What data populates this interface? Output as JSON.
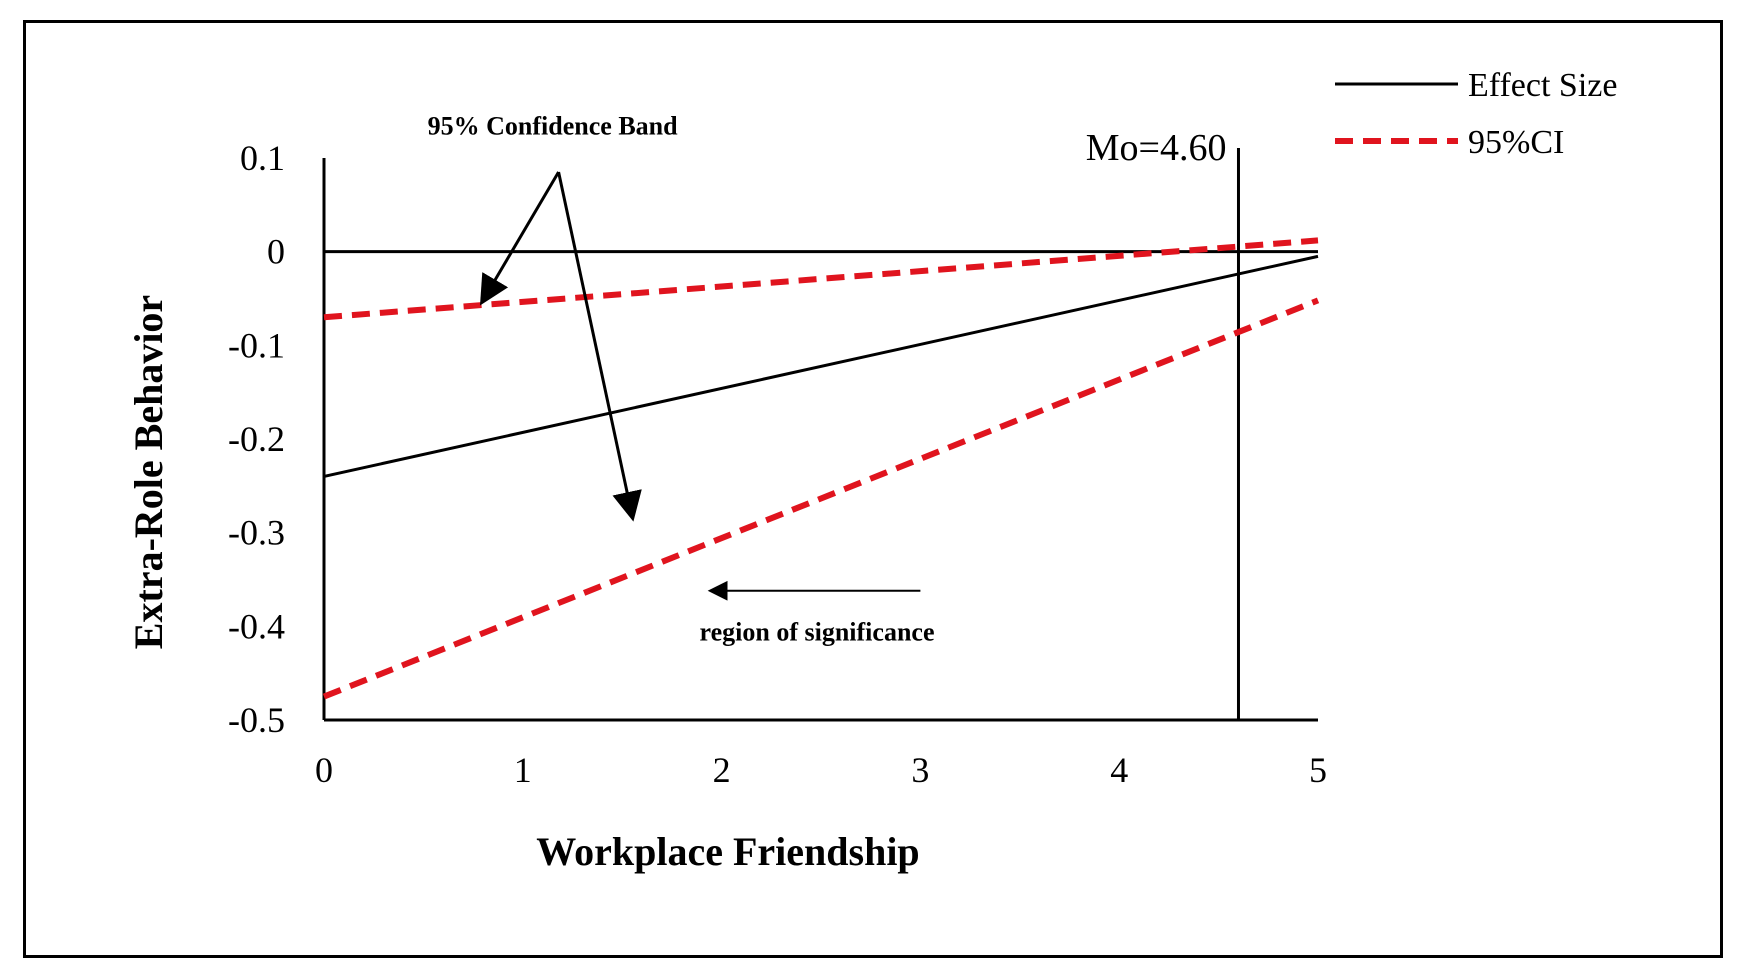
{
  "chart_data": {
    "type": "line",
    "title": "",
    "xlabel": "Workplace Friendship",
    "ylabel": "Extra-Role Behavior",
    "xlim": [
      0,
      5
    ],
    "ylim": [
      -0.5,
      0.1
    ],
    "x_ticks": [
      "0",
      "1",
      "2",
      "3",
      "4",
      "5"
    ],
    "y_ticks": [
      "0.1",
      "0",
      "-0.1",
      "-0.2",
      "-0.3",
      "-0.4",
      "-0.5"
    ],
    "grid": false,
    "legend_position": "top-right",
    "colors": {
      "effect": "#000000",
      "ci": "#e0141e"
    },
    "legend": [
      {
        "label": "Effect Size",
        "style": "solid",
        "color": "#000000"
      },
      {
        "label": "95%CI",
        "style": "dashed",
        "color": "#e0141e"
      }
    ],
    "series": [
      {
        "name": "Effect Size",
        "style": "solid",
        "x": [
          0,
          5
        ],
        "y": [
          -0.24,
          -0.005
        ]
      },
      {
        "name": "95%CI",
        "role": "upper",
        "style": "dashed",
        "x": [
          0,
          5
        ],
        "y": [
          -0.07,
          0.012
        ]
      },
      {
        "name": "95%CI",
        "role": "lower",
        "style": "dashed",
        "x": [
          0,
          5
        ],
        "y": [
          -0.475,
          -0.052
        ]
      }
    ],
    "zero_line": 0,
    "reference_line": {
      "x": 4.6,
      "label": "Mo=4.60"
    },
    "annotations": [
      {
        "text": "95% Confidence Band",
        "label_at": [
          1.15,
          0.125
        ],
        "arrow_origin": [
          1.18,
          0.085
        ],
        "arrow_targets": [
          [
            0.8,
            -0.052
          ],
          [
            1.55,
            -0.282
          ]
        ]
      },
      {
        "text": "region of significance",
        "label_at": [
          2.48,
          -0.415
        ],
        "arrow_from": [
          3.0,
          -0.362
        ],
        "arrow_to": [
          1.95,
          -0.362
        ]
      }
    ]
  }
}
